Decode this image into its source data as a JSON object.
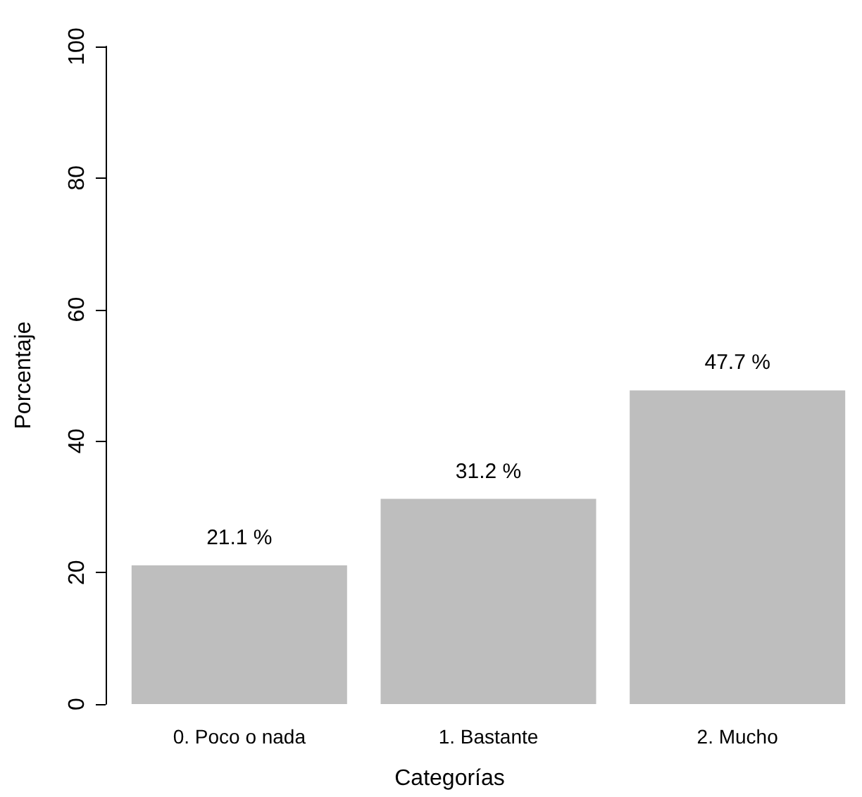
{
  "chart_data": {
    "type": "bar",
    "xlabel": "Categorías",
    "ylabel": "Porcentaje",
    "categories": [
      "0. Poco o nada",
      "1. Bastante",
      "2. Mucho"
    ],
    "values": [
      21.1,
      31.2,
      47.7
    ],
    "color": "#bebebe",
    "value_labels": [
      "21.1 %",
      "31.2 %",
      "47.7 %"
    ],
    "ylim": [
      0,
      100
    ],
    "yticks": [
      0,
      20,
      40,
      60,
      80,
      100
    ],
    "grid": false
  }
}
